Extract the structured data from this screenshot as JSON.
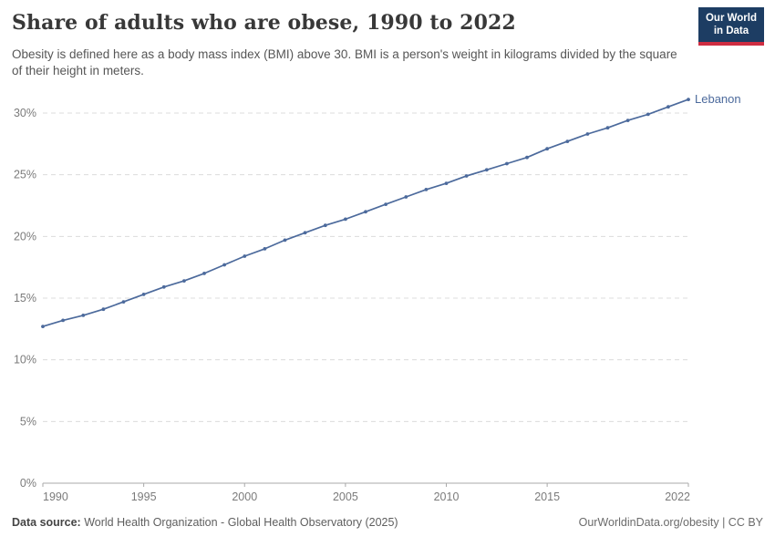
{
  "header": {
    "title": "Share of adults who are obese, 1990 to 2022",
    "subtitle": "Obesity is defined here as a body mass index (BMI) above 30. BMI is a person's weight in kilograms divided by the square of their height in meters.",
    "logo": {
      "line1": "Our World",
      "line2": "in Data",
      "bg_color": "#1d3d63",
      "accent_color": "#cf2d41"
    }
  },
  "chart_data": {
    "type": "line",
    "title": "Share of adults who are obese, 1990 to 2022",
    "xlabel": "",
    "ylabel": "",
    "xlim": [
      1990,
      2022
    ],
    "ylim": [
      0,
      31.5
    ],
    "grid": "horizontal-dashed",
    "legend_position": "end-of-line-label",
    "x": [
      1990,
      1991,
      1992,
      1993,
      1994,
      1995,
      1996,
      1997,
      1998,
      1999,
      2000,
      2001,
      2002,
      2003,
      2004,
      2005,
      2006,
      2007,
      2008,
      2009,
      2010,
      2011,
      2012,
      2013,
      2014,
      2015,
      2016,
      2017,
      2018,
      2019,
      2020,
      2021,
      2022
    ],
    "series": [
      {
        "name": "Lebanon",
        "color": "#4c6a9c",
        "values": [
          12.7,
          13.2,
          13.6,
          14.1,
          14.7,
          15.3,
          15.9,
          16.4,
          17.0,
          17.7,
          18.4,
          19.0,
          19.7,
          20.3,
          20.9,
          21.4,
          22.0,
          22.6,
          23.2,
          23.8,
          24.3,
          24.9,
          25.4,
          25.9,
          26.4,
          27.1,
          27.7,
          28.3,
          28.8,
          29.4,
          29.9,
          30.5,
          31.1
        ]
      }
    ],
    "yticks": [
      {
        "value": 0,
        "label": "0%"
      },
      {
        "value": 5,
        "label": "5%"
      },
      {
        "value": 10,
        "label": "10%"
      },
      {
        "value": 15,
        "label": "15%"
      },
      {
        "value": 20,
        "label": "20%"
      },
      {
        "value": 25,
        "label": "25%"
      },
      {
        "value": 30,
        "label": "30%"
      }
    ],
    "xticks": [
      {
        "value": 1990,
        "label": "1990"
      },
      {
        "value": 1995,
        "label": "1995"
      },
      {
        "value": 2000,
        "label": "2000"
      },
      {
        "value": 2005,
        "label": "2005"
      },
      {
        "value": 2010,
        "label": "2010"
      },
      {
        "value": 2015,
        "label": "2015"
      },
      {
        "value": 2022,
        "label": "2022"
      }
    ],
    "colors": {
      "gridline": "#dcdcdc",
      "axis": "#a8a8a8",
      "tick_label": "#7b7b7b"
    }
  },
  "footer": {
    "datasource_label": "Data source:",
    "datasource_value": "World Health Organization - Global Health Observatory (2025)",
    "credit": "OurWorldinData.org/obesity | CC BY"
  }
}
